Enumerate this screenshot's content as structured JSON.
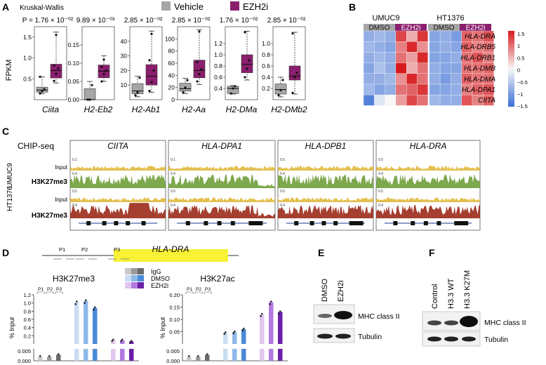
{
  "panels": {
    "A": "A",
    "B": "B",
    "C": "C",
    "D": "D",
    "E": "E",
    "F": "F"
  },
  "panel_a": {
    "test_label": "Kruskal-Wallis",
    "legend": [
      {
        "label": "Vehicle",
        "color": "#a6a6a6"
      },
      {
        "label": "EZH2i",
        "color": "#8b1e6e"
      }
    ],
    "y_label": "FPKM",
    "colors": {
      "vehicle": "#a6a6a6",
      "ezh2i": "#8b1e6e"
    },
    "chart_data": {
      "type": "box",
      "title": "Kruskal-Wallis",
      "ylabel": "FPKM",
      "series": [
        "Vehicle",
        "EZH2i"
      ],
      "genes": [
        {
          "name": "Ciita",
          "p": "P = 1.76 × 10⁻⁰²",
          "ylim": [
            0.0,
            1.75
          ],
          "ticks": [
            0.5,
            1.0,
            1.5
          ],
          "tick_labels": [
            "0.5",
            "1.0",
            "1.5"
          ],
          "vehicle": {
            "min": 0.14,
            "q1": 0.18,
            "median": 0.23,
            "q3": 0.3,
            "max": 0.55,
            "points": [
              0.15,
              0.2,
              0.25,
              0.55
            ]
          },
          "ezh2i": {
            "min": 0.4,
            "q1": 0.52,
            "median": 0.7,
            "q3": 0.85,
            "max": 1.62,
            "points": [
              0.45,
              0.62,
              0.75,
              0.82,
              1.55
            ]
          }
        },
        {
          "name": "H2-Eb2",
          "p": "9.89 × 10⁻⁰³",
          "ylim": [
            0.0,
            0.2
          ],
          "ticks": [
            0.0,
            0.05,
            0.1,
            0.15
          ],
          "tick_labels": [
            "0.00",
            "0.05",
            "0.10",
            "0.15"
          ],
          "vehicle": {
            "min": 0.0,
            "q1": 0.0,
            "median": 0.0,
            "q3": 0.03,
            "max": 0.05,
            "points": [
              0.0,
              0.0,
              0.04
            ]
          },
          "ezh2i": {
            "min": 0.05,
            "q1": 0.06,
            "median": 0.078,
            "q3": 0.095,
            "max": 0.12,
            "points": [
              0.05,
              0.07,
              0.08,
              0.09,
              0.11
            ]
          }
        },
        {
          "name": "H2-Ab1",
          "p": "2.85 × 10⁻⁰²",
          "ylim": [
            0,
            50
          ],
          "ticks": [
            10,
            20,
            30,
            40
          ],
          "tick_labels": [
            "10",
            "20",
            "30",
            "40"
          ],
          "vehicle": {
            "min": 2,
            "q1": 4,
            "median": 6,
            "q3": 11,
            "max": 16,
            "points": [
              3,
              5,
              15
            ]
          },
          "ezh2i": {
            "min": 5,
            "q1": 10,
            "median": 16,
            "q3": 24,
            "max": 47,
            "points": [
              6,
              12,
              20,
              27,
              45
            ]
          }
        },
        {
          "name": "H2-Aa",
          "p": "2.85 × 10⁻⁰²",
          "ylim": [
            0,
            120
          ],
          "ticks": [
            0,
            20,
            40,
            60,
            80,
            100
          ],
          "tick_labels": [
            "0",
            "20",
            "40",
            "60",
            "80",
            "100"
          ],
          "vehicle": {
            "min": 10,
            "q1": 14,
            "median": 18,
            "q3": 27,
            "max": 35,
            "points": [
              12,
              20,
              32
            ]
          },
          "ezh2i": {
            "min": 25,
            "q1": 36,
            "median": 48,
            "q3": 65,
            "max": 115,
            "points": [
              30,
              42,
              50,
              62,
              112
            ]
          }
        },
        {
          "name": "H2-DMa",
          "p": "1.76 × 10⁻⁰²",
          "ylim": [
            0.2,
            1.5
          ],
          "ticks": [
            0.4,
            0.6,
            0.8,
            1.0,
            1.2
          ],
          "tick_labels": [
            "0.4",
            "0.6",
            "0.8",
            "1.0",
            "1.2"
          ],
          "vehicle": {
            "min": 0.3,
            "q1": 0.31,
            "median": 0.4,
            "q3": 0.44,
            "max": 0.45,
            "points": [
              0.31,
              0.4,
              0.44
            ]
          },
          "ezh2i": {
            "min": 0.55,
            "q1": 0.68,
            "median": 0.83,
            "q3": 1.0,
            "max": 1.42,
            "points": [
              0.6,
              0.75,
              0.9,
              1.4
            ]
          }
        },
        {
          "name": "H2-DMb2",
          "p": "2.85 × 10⁻⁰²",
          "ylim": [
            0,
            1.3
          ],
          "ticks": [
            0.2,
            0.4,
            0.6,
            0.8,
            1.0
          ],
          "tick_labels": [
            "0.2",
            "0.4",
            "0.6",
            "0.8",
            "1.0"
          ],
          "vehicle": {
            "min": 0.05,
            "q1": 0.1,
            "median": 0.18,
            "q3": 0.28,
            "max": 0.4,
            "points": [
              0.08,
              0.17,
              0.35
            ]
          },
          "ezh2i": {
            "min": 0.1,
            "q1": 0.35,
            "median": 0.42,
            "q3": 0.6,
            "max": 1.2,
            "points": [
              0.12,
              0.4,
              0.48,
              1.18
            ]
          }
        }
      ]
    }
  },
  "panel_b": {
    "cell_lines": [
      "UMUC9",
      "HT1376"
    ],
    "conditions": [
      "DMSO",
      "EZH2i",
      "DMSO",
      "EZH2i"
    ],
    "genes": [
      "HLA-DRA",
      "HLA-DRB5",
      "HLA-DRB1",
      "HLA-DMB",
      "HLA-DMA",
      "HLA-DPA1",
      "CIITA"
    ],
    "scale_ticks": [
      "1.5",
      "1",
      "0.5",
      "0",
      "−0.5",
      "−1",
      "−1.5"
    ],
    "chart_data": {
      "type": "heatmap",
      "columns": [
        "UMUC9 DMSO 1",
        "UMUC9 DMSO 2",
        "UMUC9 DMSO 3",
        "UMUC9 EZH2i 1",
        "UMUC9 EZH2i 2",
        "UMUC9 EZH2i 3",
        "HT1376 DMSO 1",
        "HT1376 DMSO 2",
        "HT1376 DMSO 3",
        "HT1376 EZH2i 1",
        "HT1376 EZH2i 2",
        "HT1376 EZH2i 3"
      ],
      "rows": [
        "HLA-DRA",
        "HLA-DRB5",
        "HLA-DRB1",
        "HLA-DMB",
        "HLA-DMA",
        "HLA-DPA1",
        "CIITA"
      ],
      "values": [
        [
          -0.8,
          -0.7,
          -0.8,
          1.2,
          0.5,
          1.3,
          -0.9,
          -0.8,
          -1.0,
          1.0,
          0.9,
          1.1
        ],
        [
          -0.7,
          -0.8,
          -0.9,
          0.8,
          1.4,
          0.7,
          -0.9,
          -0.8,
          -0.9,
          1.0,
          0.8,
          0.9
        ],
        [
          -0.8,
          -0.7,
          -0.8,
          0.9,
          0.6,
          1.4,
          -0.9,
          -0.9,
          -0.8,
          0.9,
          1.1,
          0.8
        ],
        [
          -0.9,
          -0.6,
          -0.8,
          1.5,
          0.5,
          0.9,
          -0.8,
          -0.9,
          -0.9,
          0.9,
          0.9,
          1.0
        ],
        [
          -0.8,
          -0.8,
          -0.7,
          0.7,
          1.4,
          0.9,
          -0.8,
          -1.0,
          -0.8,
          1.0,
          0.9,
          0.9
        ],
        [
          -0.7,
          -0.9,
          -0.8,
          0.9,
          1.0,
          1.3,
          -0.9,
          -0.9,
          -0.8,
          0.8,
          1.0,
          1.1
        ],
        [
          -1.3,
          -0.2,
          0.0,
          0.6,
          1.2,
          0.9,
          -0.7,
          -0.8,
          -0.8,
          1.1,
          0.8,
          1.0
        ]
      ],
      "scale": [
        -1.5,
        1.5
      ]
    }
  },
  "panel_c": {
    "method": "CHIP-seq",
    "loci": [
      "CIITA",
      "HLA-DPA1",
      "HLA-DPB1",
      "HLA-DRA"
    ],
    "cell_lines": [
      "UMUC9",
      "HT1376"
    ],
    "tracks": [
      {
        "label": "Input",
        "bold": false,
        "color": "#e0b83c"
      },
      {
        "label": "H3K27me3",
        "bold": true,
        "color": "#6f9f3a"
      },
      {
        "label": "Input",
        "bold": false,
        "color": "#e0b83c"
      },
      {
        "label": "H3K27me3",
        "bold": true,
        "color": "#9b2a1a"
      }
    ],
    "scale_labels": [
      [
        "0.1",
        "0.1",
        "0.5",
        "0.5"
      ],
      [
        "0.4",
        "0.4",
        "0.4",
        "0.4"
      ],
      [
        "0.5",
        "0.5",
        "0.5",
        "0.5"
      ],
      [
        "0.4",
        "0.4",
        "0.4",
        "0.4"
      ]
    ]
  },
  "panel_d": {
    "gene": "HLA-DRA",
    "primers": [
      "P1",
      "P2",
      "P3"
    ],
    "legend": [
      {
        "label": "IgG",
        "colors": [
          "#c8c8c8",
          "#9a9a9a",
          "#6a6a6a"
        ]
      },
      {
        "label": "DMSO",
        "colors": [
          "#c9ddf3",
          "#8fb8e8",
          "#4a8ad6"
        ]
      },
      {
        "label": "EZH2i",
        "colors": [
          "#e2c6f0",
          "#b27ae0",
          "#6a1fa8"
        ]
      }
    ],
    "y_label": "% Input",
    "chart_data": [
      {
        "type": "bar",
        "title": "H3K27me3",
        "ylabel": "% Input",
        "y_upper_ticks": [
          "0.2",
          "0.4",
          "0.6",
          "0.8",
          "1.0",
          "1.2"
        ],
        "y_lower_ticks": [
          "0.000",
          "0.005"
        ],
        "groups": [
          "P1",
          "P2",
          "P3"
        ],
        "series": [
          {
            "name": "IgG",
            "values": [
              0.002,
              0.002,
              0.003
            ]
          },
          {
            "name": "DMSO",
            "values": [
              1.02,
              1.05,
              0.88
            ]
          },
          {
            "name": "EZH2i",
            "values": [
              0.09,
              0.09,
              0.06
            ]
          }
        ]
      },
      {
        "type": "bar",
        "title": "H3K27ac",
        "ylabel": "% Input",
        "y_upper_ticks": [
          "0.05",
          "0.10",
          "0.15",
          "0.20"
        ],
        "y_lower_ticks": [
          "0.000",
          "0.005"
        ],
        "groups": [
          "P1",
          "P2",
          "P3"
        ],
        "series": [
          {
            "name": "IgG",
            "values": [
              0.002,
              0.002,
              0.003
            ]
          },
          {
            "name": "DMSO",
            "values": [
              0.045,
              0.048,
              0.06
            ]
          },
          {
            "name": "EZH2i",
            "values": [
              0.12,
              0.17,
              0.13
            ]
          }
        ]
      }
    ]
  },
  "panel_e": {
    "lanes": [
      "DMSO",
      "EZH2i"
    ],
    "bands": [
      "MHC class II",
      "Tubulin"
    ]
  },
  "panel_f": {
    "lanes": [
      "Control",
      "H3.3 WT",
      "H3.3 K27M"
    ],
    "bands": [
      "MHC class II",
      "Tubulin"
    ]
  }
}
